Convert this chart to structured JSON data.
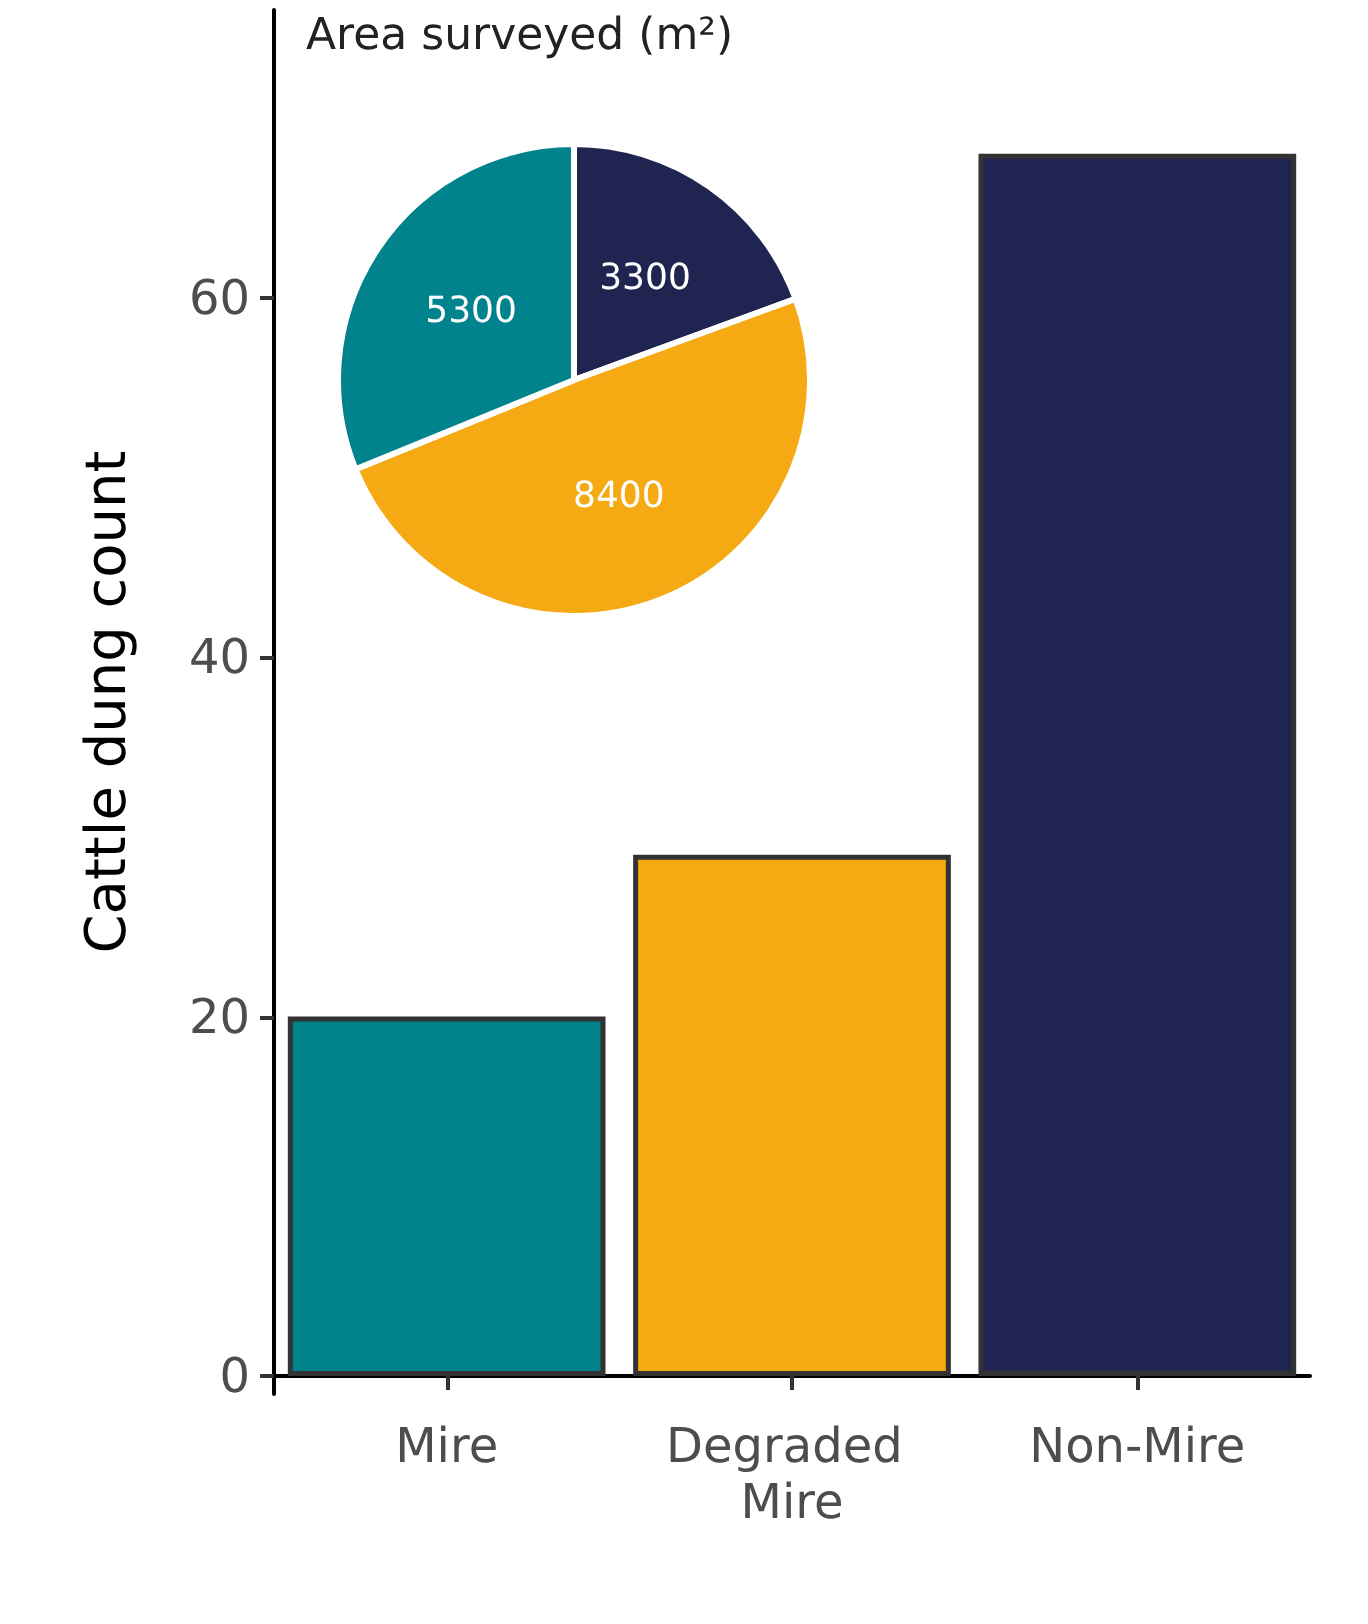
{
  "chart_data": [
    {
      "type": "bar",
      "ylabel": "Cattle dung count",
      "categories": [
        "Mire",
        "Degraded Mire",
        "Non-Mire"
      ],
      "values": [
        20,
        29,
        68
      ],
      "colors": [
        "#00838c",
        "#f5a913",
        "#1f2550"
      ],
      "ylim": [
        -1,
        76
      ],
      "yticks": [
        0,
        20,
        40,
        60
      ],
      "grid": false
    },
    {
      "type": "pie",
      "title": "Area surveyed (m²)",
      "categories": [
        null,
        null,
        null
      ],
      "values": [
        3300,
        8400,
        5300
      ],
      "colors": [
        "#1f2550",
        "#f5a913",
        "#00838c"
      ],
      "data_labels": true
    }
  ]
}
